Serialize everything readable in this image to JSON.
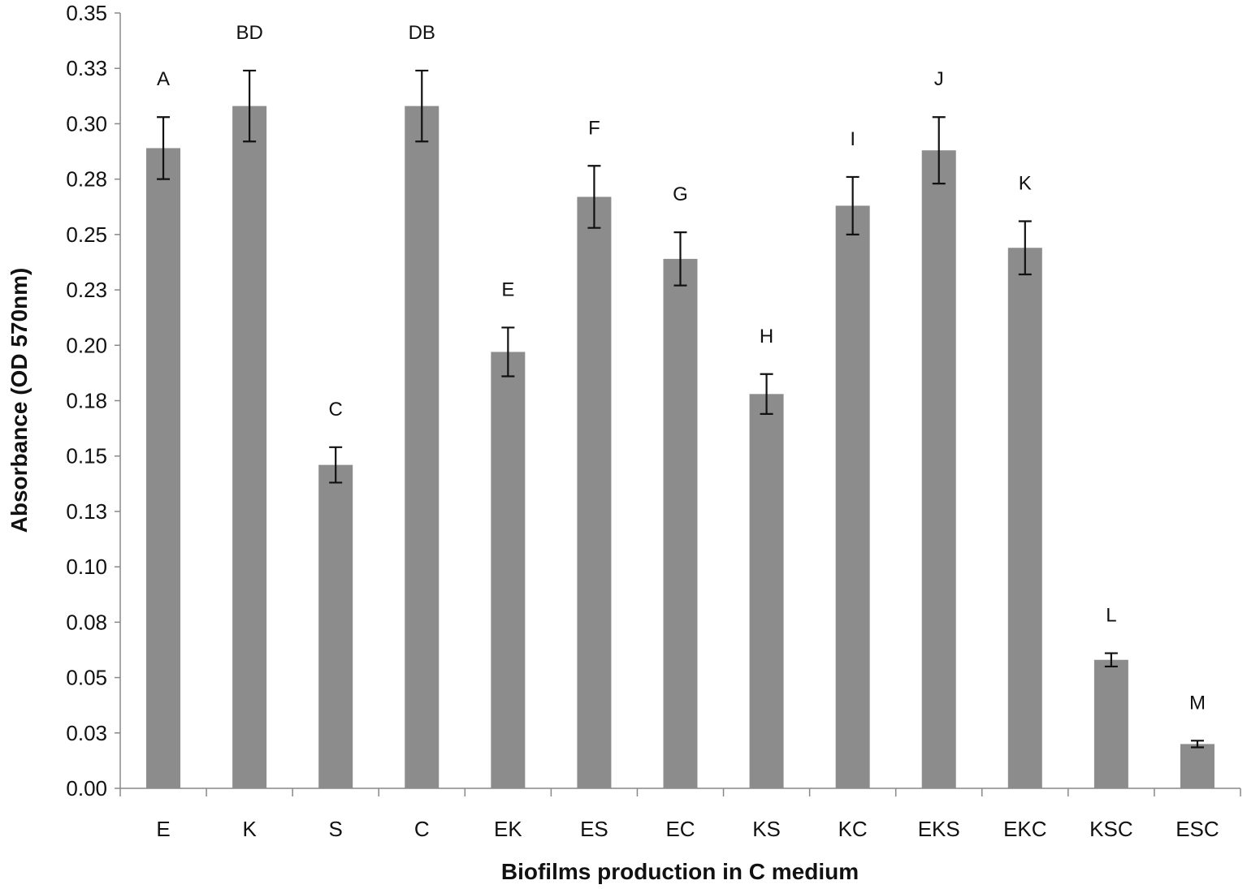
{
  "chart_data": {
    "type": "bar",
    "xlabel": "Biofilms production in C medium",
    "ylabel": "Absorbance (OD 570nm)",
    "ylim": [
      0,
      0.35
    ],
    "yticks": [
      "0.00",
      "0.03",
      "0.05",
      "0.08",
      "0.10",
      "0.13",
      "0.15",
      "0.18",
      "0.20",
      "0.23",
      "0.25",
      "0.28",
      "0.30",
      "0.33",
      "0.35"
    ],
    "categories": [
      "E",
      "K",
      "S",
      "C",
      "EK",
      "ES",
      "EC",
      "KS",
      "KC",
      "EKS",
      "EKC",
      "KSC",
      "ESC"
    ],
    "values": [
      0.289,
      0.308,
      0.146,
      0.308,
      0.197,
      0.267,
      0.239,
      0.178,
      0.263,
      0.288,
      0.244,
      0.058,
      0.02
    ],
    "errors": [
      0.014,
      0.016,
      0.008,
      0.016,
      0.011,
      0.014,
      0.012,
      0.009,
      0.013,
      0.015,
      0.012,
      0.003,
      0.0015
    ],
    "significance_letters": [
      "A",
      "BD",
      "C",
      "DB",
      "E",
      "F",
      "G",
      "H",
      "I",
      "J",
      "K",
      "L",
      "M"
    ],
    "bar_color": "#8c8c8c",
    "grid": false,
    "legend": "none"
  }
}
